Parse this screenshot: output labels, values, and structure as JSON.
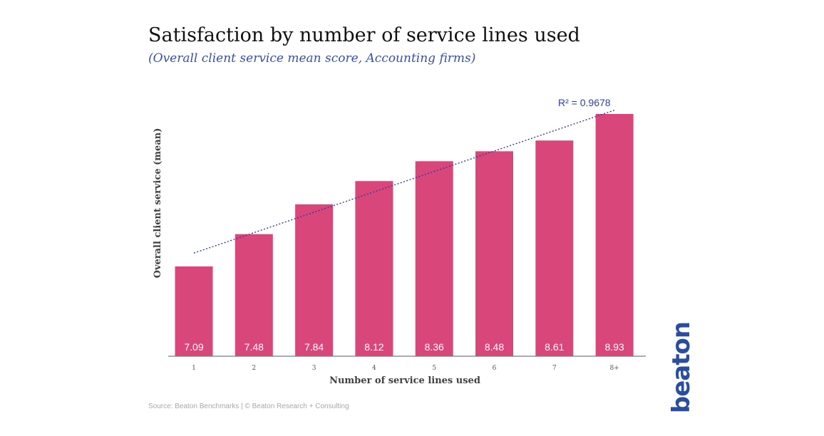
{
  "chart_data": {
    "type": "bar",
    "title": "Satisfaction by number of service lines used",
    "subtitle": "(Overall client service mean score, Accounting firms)",
    "xlabel": "Number of service lines used",
    "ylabel": "Overall client service (mean)",
    "categories": [
      "1",
      "2",
      "3",
      "4",
      "5",
      "6",
      "7",
      "8+"
    ],
    "values": [
      7.09,
      7.48,
      7.84,
      8.12,
      8.36,
      8.48,
      8.61,
      8.93
    ],
    "value_labels": [
      "7.09",
      "7.48",
      "7.84",
      "8.12",
      "8.36",
      "8.48",
      "8.61",
      "8.93"
    ],
    "trendline": {
      "type": "linear",
      "r2_label": "R² = 0.9678"
    },
    "bar_color": "#d9467a",
    "trend_color": "#2e3f9a",
    "grid": false,
    "legend": "none"
  },
  "footer": {
    "source": "Source: Beaton Benchmarks | © Beaton Research + Consulting",
    "logo_text": "beaton"
  }
}
